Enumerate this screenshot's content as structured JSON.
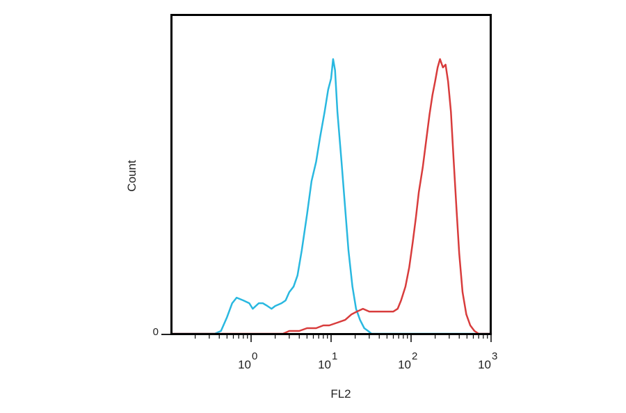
{
  "chart_data": {
    "type": "line",
    "xlabel": "FL2",
    "ylabel": "Count",
    "x_scale": "log10",
    "xlim": [
      0.1,
      1000
    ],
    "ylim": [
      0,
      100
    ],
    "y_ticks": [
      {
        "value": 0,
        "label": "0"
      }
    ],
    "x_major_ticks": [
      {
        "value": 1,
        "base": "10",
        "exp": "0"
      },
      {
        "value": 10,
        "base": "10",
        "exp": "1"
      },
      {
        "value": 100,
        "base": "10",
        "exp": "2"
      },
      {
        "value": 1000,
        "base": "10",
        "exp": "3"
      }
    ],
    "grid": false,
    "legend": "none",
    "series": [
      {
        "color": "#29b8e0",
        "points": [
          [
            0.1,
            0
          ],
          [
            0.35,
            0
          ],
          [
            0.42,
            1
          ],
          [
            0.5,
            6
          ],
          [
            0.58,
            11
          ],
          [
            0.66,
            13
          ],
          [
            0.8,
            12
          ],
          [
            0.95,
            11
          ],
          [
            1.05,
            9
          ],
          [
            1.25,
            11
          ],
          [
            1.4,
            11
          ],
          [
            1.6,
            10
          ],
          [
            1.8,
            9
          ],
          [
            2.0,
            10
          ],
          [
            2.4,
            11
          ],
          [
            2.7,
            12
          ],
          [
            3.0,
            15
          ],
          [
            3.4,
            17
          ],
          [
            3.8,
            21
          ],
          [
            4.3,
            30
          ],
          [
            5.0,
            43
          ],
          [
            5.7,
            55
          ],
          [
            6.5,
            62
          ],
          [
            7.3,
            71
          ],
          [
            8.3,
            80
          ],
          [
            9.2,
            88
          ],
          [
            10.0,
            92
          ],
          [
            10.6,
            99
          ],
          [
            11.2,
            95
          ],
          [
            12.0,
            80
          ],
          [
            13.5,
            62
          ],
          [
            15.0,
            45
          ],
          [
            16.5,
            30
          ],
          [
            18.5,
            17
          ],
          [
            20.5,
            9
          ],
          [
            23.0,
            5
          ],
          [
            26.0,
            2
          ],
          [
            29.0,
            1
          ],
          [
            32.0,
            0
          ],
          [
            60.0,
            0
          ],
          [
            1000.0,
            0
          ]
        ]
      },
      {
        "color": "#d83c3c",
        "points": [
          [
            0.1,
            0
          ],
          [
            1.0,
            0
          ],
          [
            2.5,
            0
          ],
          [
            3.0,
            1
          ],
          [
            4.0,
            1
          ],
          [
            5.0,
            2
          ],
          [
            6.5,
            2
          ],
          [
            8.0,
            3
          ],
          [
            9.5,
            3
          ],
          [
            12.0,
            4
          ],
          [
            15.0,
            5
          ],
          [
            18.0,
            7
          ],
          [
            21.0,
            8
          ],
          [
            25.0,
            9
          ],
          [
            30.0,
            8
          ],
          [
            40.0,
            8
          ],
          [
            50.0,
            8
          ],
          [
            60.0,
            8
          ],
          [
            68.0,
            9
          ],
          [
            75.0,
            12
          ],
          [
            85.0,
            17
          ],
          [
            95.0,
            24
          ],
          [
            105.0,
            33
          ],
          [
            115.0,
            42
          ],
          [
            125.0,
            51
          ],
          [
            140.0,
            60
          ],
          [
            155.0,
            70
          ],
          [
            170.0,
            79
          ],
          [
            185.0,
            86
          ],
          [
            200.0,
            91
          ],
          [
            215.0,
            96
          ],
          [
            230.0,
            99
          ],
          [
            250.0,
            96
          ],
          [
            270.0,
            97
          ],
          [
            290.0,
            91
          ],
          [
            315.0,
            80
          ],
          [
            340.0,
            63
          ],
          [
            370.0,
            45
          ],
          [
            400.0,
            29
          ],
          [
            440.0,
            15
          ],
          [
            490.0,
            7
          ],
          [
            550.0,
            3
          ],
          [
            620.0,
            1
          ],
          [
            700.0,
            0
          ],
          [
            1000.0,
            0
          ]
        ]
      }
    ]
  }
}
